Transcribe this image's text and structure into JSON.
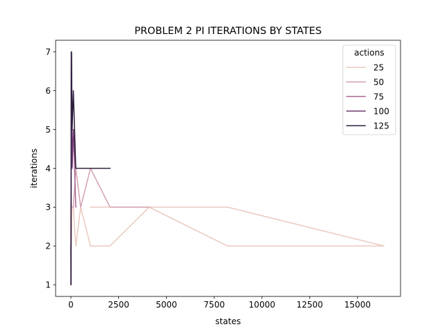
{
  "chart_data": {
    "type": "line",
    "title": "PROBLEM 2 PI ITERATIONS BY STATES",
    "xlabel": "states",
    "ylabel": "iterations",
    "xlim": [
      -800,
      17250
    ],
    "ylim": [
      0.7,
      7.3
    ],
    "x_ticks": [
      0,
      2500,
      5000,
      7500,
      10000,
      12500,
      15000
    ],
    "x_tick_labels": [
      "0",
      "2500",
      "5000",
      "7500",
      "10000",
      "12500",
      "15000"
    ],
    "y_ticks": [
      1,
      2,
      3,
      4,
      5,
      6,
      7
    ],
    "y_tick_labels": [
      "1",
      "2",
      "3",
      "4",
      "5",
      "6",
      "7"
    ],
    "grid": false,
    "legend": {
      "title": "actions",
      "placement": "top-right"
    },
    "series": [
      {
        "name": "25",
        "color": "#ebc9bf",
        "points": [
          [
            2,
            2
          ],
          [
            4,
            1
          ],
          [
            8,
            2
          ],
          [
            16,
            3
          ],
          [
            32,
            2
          ],
          [
            64,
            3
          ],
          [
            128,
            3
          ],
          [
            256,
            2
          ],
          [
            512,
            3
          ],
          [
            1024,
            2
          ],
          [
            2048,
            2
          ],
          [
            4096,
            3
          ],
          [
            8192,
            3
          ],
          [
            16384,
            2
          ],
          [
            8192,
            2
          ],
          [
            4096,
            3
          ],
          [
            2048,
            3
          ],
          [
            1024,
            3
          ]
        ]
      },
      {
        "name": "50",
        "color": "#d3a1af",
        "points": [
          [
            2,
            2
          ],
          [
            4,
            1
          ],
          [
            8,
            3
          ],
          [
            16,
            4
          ],
          [
            32,
            3
          ],
          [
            64,
            3
          ],
          [
            128,
            3
          ],
          [
            256,
            4
          ],
          [
            512,
            3
          ],
          [
            1024,
            4
          ],
          [
            2048,
            3
          ],
          [
            4096,
            3
          ]
        ]
      },
      {
        "name": "75",
        "color": "#a86592",
        "points": [
          [
            2,
            2
          ],
          [
            4,
            1
          ],
          [
            8,
            3
          ],
          [
            16,
            4
          ],
          [
            32,
            5
          ],
          [
            64,
            4
          ],
          [
            128,
            5
          ],
          [
            256,
            3
          ]
        ]
      },
      {
        "name": "100",
        "color": "#6d3b71",
        "points": [
          [
            2,
            2
          ],
          [
            4,
            1
          ],
          [
            8,
            3
          ],
          [
            16,
            6
          ],
          [
            32,
            7
          ],
          [
            64,
            4
          ],
          [
            128,
            5
          ],
          [
            256,
            4
          ]
        ]
      },
      {
        "name": "125",
        "color": "#2d1e3e",
        "points": [
          [
            2,
            2
          ],
          [
            4,
            1
          ],
          [
            8,
            3
          ],
          [
            16,
            7
          ],
          [
            32,
            7
          ],
          [
            64,
            5
          ],
          [
            128,
            6
          ],
          [
            256,
            4
          ],
          [
            512,
            4
          ],
          [
            1024,
            4
          ],
          [
            2048,
            4
          ]
        ]
      }
    ]
  }
}
